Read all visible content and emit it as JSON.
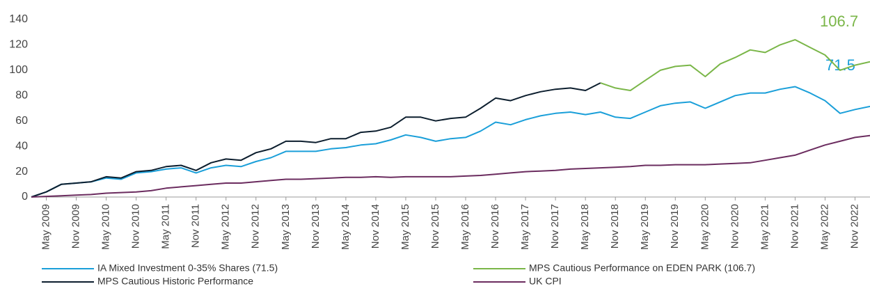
{
  "chart_data": {
    "type": "line",
    "categories": [
      null,
      "May 2009",
      null,
      "Nov 2009",
      null,
      "May 2010",
      null,
      "Nov 2010",
      null,
      "May 2011",
      null,
      "Nov 2011",
      null,
      "May 2012",
      null,
      "Nov 2012",
      null,
      "May 2013",
      null,
      "Nov 2013",
      null,
      "May 2014",
      null,
      "Nov 2014",
      null,
      "May 2015",
      null,
      "Nov 2015",
      null,
      "May 2016",
      null,
      "Nov 2016",
      null,
      "May 2017",
      null,
      "Nov 2017",
      null,
      "May 2018",
      null,
      "Nov 2018",
      null,
      "May 2019",
      null,
      "Nov 2019",
      null,
      "May 2020",
      null,
      "Nov 2020",
      null,
      "May 2021",
      null,
      "Nov 2021",
      null,
      "May 2022",
      null,
      "Nov 2022",
      null
    ],
    "series": [
      {
        "name": "IA Mixed Investment 0-35% Shares (71.5)",
        "color": "#1a9fd9",
        "values": [
          0,
          4,
          10,
          11,
          12,
          15,
          14,
          19,
          20,
          22,
          23,
          19,
          23,
          25,
          24,
          28,
          31,
          36,
          36,
          36,
          38,
          39,
          41,
          42,
          45,
          49,
          47,
          44,
          46,
          47,
          52,
          59,
          57,
          61,
          64,
          66,
          67,
          65,
          67,
          63,
          62,
          67,
          72,
          74,
          75,
          70,
          75,
          80,
          82,
          82,
          85,
          87,
          82,
          76,
          66,
          69,
          71.5
        ]
      },
      {
        "name": "MPS Cautious Performance on EDEN PARK (106.7)",
        "color": "#7ab648",
        "values": [
          null,
          null,
          null,
          null,
          null,
          null,
          null,
          null,
          null,
          null,
          null,
          null,
          null,
          null,
          null,
          null,
          null,
          null,
          null,
          null,
          null,
          null,
          null,
          null,
          null,
          null,
          null,
          null,
          null,
          null,
          null,
          null,
          null,
          null,
          null,
          null,
          null,
          null,
          90,
          86,
          84,
          92,
          100,
          103,
          104,
          95,
          105,
          110,
          116,
          114,
          120,
          124,
          118,
          112,
          100,
          104,
          106.7
        ]
      },
      {
        "name": "MPS Cautious Historic Performance",
        "color": "#0c1e2e",
        "values": [
          0,
          4,
          10,
          11,
          12,
          16,
          15,
          20,
          21,
          24,
          25,
          21,
          27,
          30,
          29,
          35,
          38,
          44,
          44,
          43,
          46,
          46,
          51,
          52,
          55,
          63,
          63,
          60,
          62,
          63,
          70,
          78,
          76,
          80,
          83,
          85,
          86,
          84,
          90,
          null,
          null,
          null,
          null,
          null,
          null,
          null,
          null,
          null,
          null,
          null,
          null,
          null,
          null,
          null,
          null,
          null,
          null
        ]
      },
      {
        "name": "UK CPI",
        "color": "#6b2c5f",
        "values": [
          0,
          0.5,
          1,
          1.5,
          2,
          3,
          3.5,
          4,
          5,
          7,
          8,
          9,
          10,
          11,
          11,
          12,
          13,
          14,
          14,
          14.5,
          15,
          15.5,
          15.5,
          16,
          15.5,
          16,
          16,
          16,
          16,
          16.5,
          17,
          18,
          19,
          20,
          20.5,
          21,
          22,
          22.5,
          23,
          23.5,
          24,
          25,
          25,
          25.5,
          25.5,
          25.5,
          26,
          26.5,
          27,
          29,
          31,
          33,
          37,
          41,
          44,
          47,
          48.5
        ]
      }
    ],
    "annotations": [
      {
        "text": "106.7"
      },
      {
        "text": "71.5"
      }
    ],
    "ylim": [
      0,
      140
    ],
    "yticks": [
      0,
      20,
      40,
      60,
      80,
      100,
      120,
      140
    ],
    "grid": false
  }
}
